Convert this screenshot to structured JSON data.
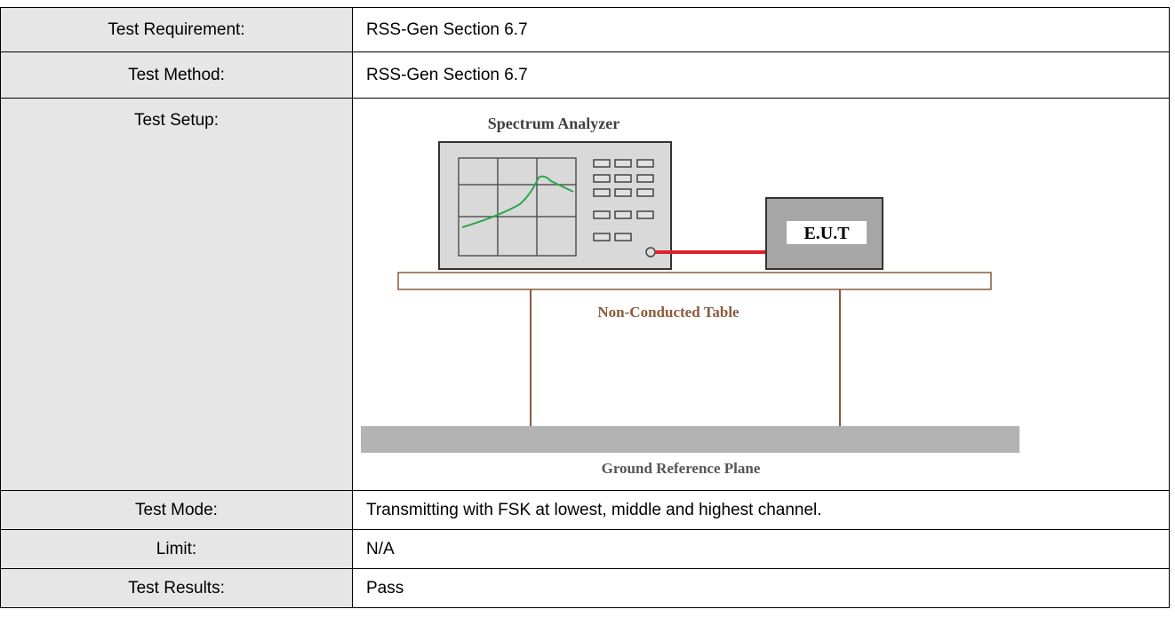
{
  "table": {
    "rows": [
      [
        "Test Requirement:",
        "RSS-Gen Section 6.7"
      ],
      [
        "Test Method:",
        "RSS-Gen Section 6.7"
      ],
      [
        "Test Setup:"
      ],
      [
        "Test Mode:",
        "Transmitting with FSK at lowest, middle and highest channel."
      ],
      [
        "Limit:",
        "N/A"
      ],
      [
        "Test Results:",
        "Pass"
      ]
    ]
  },
  "diagram": {
    "analyzer": "Spectrum Analyzer",
    "eut": "E.U.T",
    "table": "Non-Conducted Table",
    "ground": "Ground Reference Plane"
  }
}
